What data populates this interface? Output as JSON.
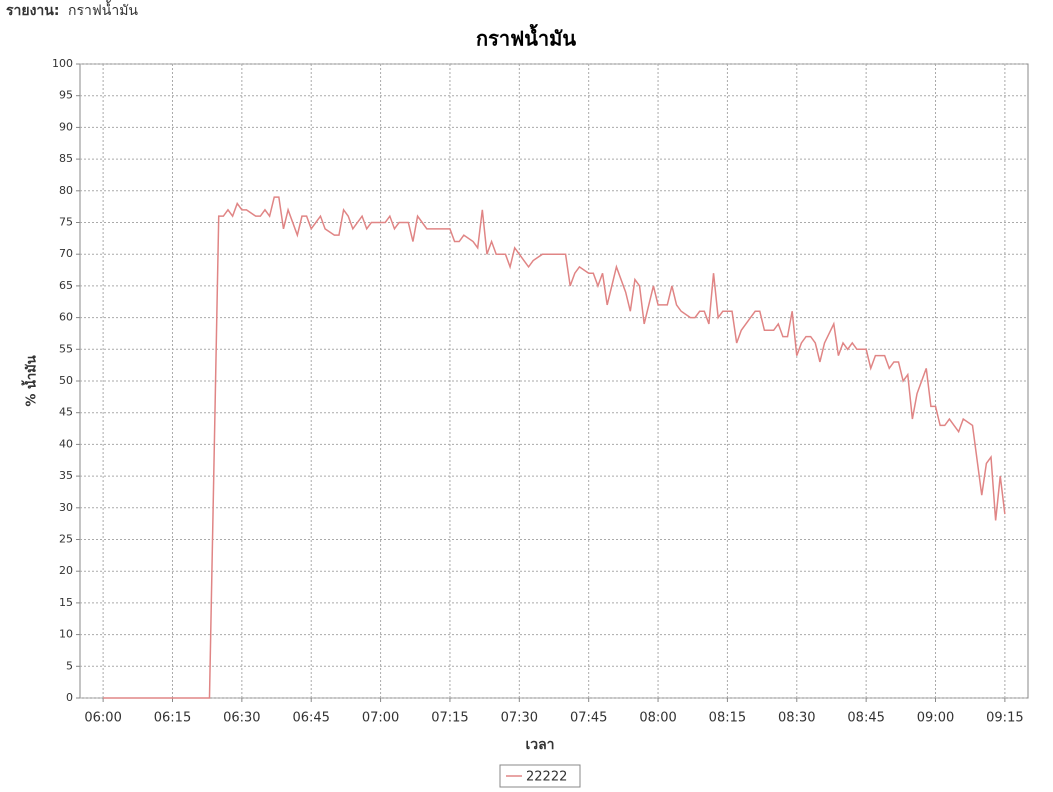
{
  "report": {
    "label": "รายงาน:",
    "value": "กราฟน้ำมัน"
  },
  "chart_data": {
    "type": "line",
    "title": "กราฟน้ำมัน",
    "x_label": "เวลา",
    "y_label": "% น้ำมัน",
    "x": [
      "06:00",
      "06:23",
      "06:25",
      "06:26",
      "06:27",
      "06:28",
      "06:29",
      "06:30",
      "06:31",
      "06:33",
      "06:34",
      "06:35",
      "06:36",
      "06:37",
      "06:38",
      "06:39",
      "06:40",
      "06:42",
      "06:43",
      "06:44",
      "06:45",
      "06:46",
      "06:47",
      "06:48",
      "06:50",
      "06:51",
      "06:52",
      "06:53",
      "06:54",
      "06:56",
      "06:57",
      "06:58",
      "07:00",
      "07:01",
      "07:02",
      "07:03",
      "07:04",
      "07:05",
      "07:06",
      "07:07",
      "07:08",
      "07:09",
      "07:10",
      "07:15",
      "07:16",
      "07:17",
      "07:18",
      "07:20",
      "07:21",
      "07:22",
      "07:23",
      "07:24",
      "07:25",
      "07:27",
      "07:28",
      "07:29",
      "07:30",
      "07:31",
      "07:32",
      "07:33",
      "07:35",
      "07:40",
      "07:41",
      "07:42",
      "07:43",
      "07:45",
      "07:46",
      "07:47",
      "07:48",
      "07:49",
      "07:50",
      "07:51",
      "07:52",
      "07:53",
      "07:54",
      "07:55",
      "07:56",
      "07:57",
      "07:58",
      "07:59",
      "08:00",
      "08:01",
      "08:02",
      "08:03",
      "08:04",
      "08:05",
      "08:07",
      "08:08",
      "08:09",
      "08:10",
      "08:11",
      "08:12",
      "08:13",
      "08:14",
      "08:16",
      "08:17",
      "08:18",
      "08:20",
      "08:21",
      "08:22",
      "08:23",
      "08:25",
      "08:26",
      "08:27",
      "08:28",
      "08:29",
      "08:30",
      "08:31",
      "08:32",
      "08:33",
      "08:34",
      "08:35",
      "08:36",
      "08:38",
      "08:39",
      "08:40",
      "08:41",
      "08:42",
      "08:43",
      "08:45",
      "08:46",
      "08:47",
      "08:49",
      "08:50",
      "08:51",
      "08:52",
      "08:53",
      "08:54",
      "08:55",
      "08:56",
      "08:58",
      "08:59",
      "09:00",
      "09:01",
      "09:02",
      "09:03",
      "09:05",
      "09:06",
      "09:08",
      "09:10",
      "09:11",
      "09:12",
      "09:13",
      "09:14",
      "09:15"
    ],
    "series": [
      {
        "name": "22222",
        "color": "#e08585",
        "values": [
          0,
          0,
          76,
          76,
          77,
          76,
          78,
          77,
          77,
          76,
          76,
          77,
          76,
          79,
          79,
          74,
          77,
          73,
          76,
          76,
          74,
          75,
          76,
          74,
          73,
          73,
          77,
          76,
          74,
          76,
          74,
          75,
          75,
          75,
          76,
          74,
          75,
          75,
          75,
          72,
          76,
          75,
          74,
          74,
          72,
          72,
          73,
          72,
          71,
          77,
          70,
          72,
          70,
          70,
          68,
          71,
          70,
          69,
          68,
          69,
          70,
          70,
          65,
          67,
          68,
          67,
          67,
          65,
          67,
          62,
          65,
          68,
          66,
          64,
          61,
          66,
          65,
          59,
          62,
          65,
          62,
          62,
          62,
          65,
          62,
          61,
          60,
          60,
          61,
          61,
          59,
          67,
          60,
          61,
          61,
          56,
          58,
          60,
          61,
          61,
          58,
          58,
          59,
          57,
          57,
          61,
          54,
          56,
          57,
          57,
          56,
          53,
          56,
          59,
          54,
          56,
          55,
          56,
          55,
          55,
          52,
          54,
          54,
          52,
          53,
          53,
          50,
          51,
          44,
          48,
          52,
          46,
          46,
          43,
          43,
          44,
          42,
          44,
          43,
          32,
          37,
          38,
          28,
          35,
          29
        ]
      }
    ],
    "xlim": [
      "05:55",
      "09:20"
    ],
    "xticks": [
      "06:00",
      "06:15",
      "06:30",
      "06:45",
      "07:00",
      "07:15",
      "07:30",
      "07:45",
      "08:00",
      "08:15",
      "08:30",
      "08:45",
      "09:00",
      "09:15"
    ],
    "ylim": [
      0,
      100
    ],
    "yticks": [
      0,
      5,
      10,
      15,
      20,
      25,
      30,
      35,
      40,
      45,
      50,
      55,
      60,
      65,
      70,
      75,
      80,
      85,
      90,
      95,
      100
    ],
    "grid": true,
    "legend": "bottom"
  }
}
